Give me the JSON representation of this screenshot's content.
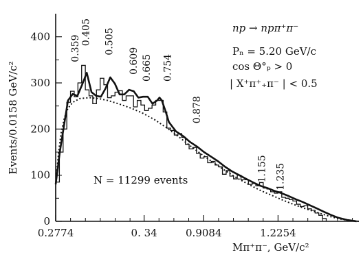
{
  "chart_data": {
    "type": "line",
    "reaction": "np → npπ⁺π⁻",
    "momentum": "Pₙ = 5.20 GeV/c",
    "cut_angle": "cos Θ°ₚ > 0",
    "cut_x": "| X⁺π⁺₊π⁻ | < 0.5",
    "events_note": "N = 11299 events",
    "xlabel": "Mπ⁺π⁻, GeV/c²",
    "ylabel": "Events/0.0158 GeV/c²",
    "xlim": [
      0.2774,
      1.57
    ],
    "ylim": [
      0,
      450
    ],
    "x_ticks": [
      {
        "value": 0.2774,
        "label": "0.2774"
      },
      {
        "value": 0.6544,
        "label": "0. 34"
      },
      {
        "value": 0.9084,
        "label": "0.9084"
      },
      {
        "value": 1.2254,
        "label": "1.2254"
      }
    ],
    "x_minor_ticks": [
      0.3408,
      0.4042,
      0.4676,
      0.531,
      0.5944,
      0.7178,
      0.7812,
      0.8446,
      0.9718,
      1.0352,
      1.0986,
      1.162,
      1.2888,
      1.3522,
      1.4156,
      1.479,
      1.5424
    ],
    "y_ticks": [
      0,
      100,
      200,
      300,
      400
    ],
    "y_minor_ticks": [
      50,
      150,
      250,
      350
    ],
    "peak_labels": [
      {
        "label": "0.359",
        "x": 0.359,
        "y": 345
      },
      {
        "label": "0.405",
        "x": 0.405,
        "y": 380
      },
      {
        "label": "0.505",
        "x": 0.505,
        "y": 360
      },
      {
        "label": "0.609",
        "x": 0.609,
        "y": 318
      },
      {
        "label": "0.665",
        "x": 0.665,
        "y": 303
      },
      {
        "label": "0.754",
        "x": 0.754,
        "y": 303
      },
      {
        "label": "0.878",
        "x": 0.878,
        "y": 212
      },
      {
        "label": "1.155",
        "x": 1.155,
        "y": 84
      },
      {
        "label": "1.235",
        "x": 1.235,
        "y": 67
      }
    ],
    "series": [
      {
        "style": "histogram",
        "x": [
          0.2774,
          0.2932,
          0.309,
          0.3248,
          0.3406,
          0.3564,
          0.3722,
          0.388,
          0.4038,
          0.4196,
          0.4354,
          0.4512,
          0.467,
          0.4828,
          0.4986,
          0.5144,
          0.5302,
          0.546,
          0.5618,
          0.5776,
          0.5934,
          0.6092,
          0.625,
          0.6408,
          0.6566,
          0.6724,
          0.6882,
          0.704,
          0.7198,
          0.7356,
          0.7514,
          0.7672,
          0.783,
          0.7988,
          0.8146,
          0.8304,
          0.8462,
          0.862,
          0.8778,
          0.8936,
          0.9094,
          0.9252,
          0.941,
          0.9568,
          0.9726,
          0.9884,
          1.0042,
          1.02,
          1.0358,
          1.0516,
          1.0674,
          1.0832,
          1.099,
          1.1148,
          1.1306,
          1.1464,
          1.1622,
          1.178,
          1.1938,
          1.2096,
          1.2254,
          1.2412,
          1.257,
          1.2728,
          1.2886,
          1.3044,
          1.3202,
          1.336,
          1.3518,
          1.3676,
          1.3834,
          1.3992,
          1.415
        ],
        "values": [
          85,
          150,
          200,
          258,
          282,
          270,
          300,
          338,
          285,
          272,
          255,
          285,
          310,
          296,
          268,
          272,
          280,
          283,
          262,
          272,
          272,
          248,
          262,
          252,
          240,
          245,
          252,
          262,
          262,
          237,
          202,
          197,
          187,
          190,
          182,
          167,
          157,
          160,
          147,
          137,
          140,
          127,
          130,
          122,
          118,
          102,
          110,
          98,
          92,
          100,
          90,
          90,
          80,
          82,
          77,
          84,
          72,
          70,
          64,
          61,
          64,
          52,
          50,
          47,
          44,
          37,
          32,
          34,
          27,
          24,
          18,
          13,
          6
        ]
      },
      {
        "style": "fit-solid",
        "x": [
          0.2774,
          0.295,
          0.312,
          0.33,
          0.35,
          0.37,
          0.39,
          0.41,
          0.43,
          0.45,
          0.47,
          0.49,
          0.51,
          0.53,
          0.55,
          0.57,
          0.59,
          0.61,
          0.63,
          0.65,
          0.67,
          0.69,
          0.71,
          0.72,
          0.73,
          0.745,
          0.76,
          0.775,
          0.79,
          0.82,
          0.85,
          0.88,
          0.91,
          0.94,
          0.97,
          1.0,
          1.03,
          1.06,
          1.09,
          1.12,
          1.15,
          1.18,
          1.21,
          1.24,
          1.27,
          1.3,
          1.33,
          1.36,
          1.39,
          1.42,
          1.45,
          1.48,
          1.52,
          1.56
        ],
        "values": [
          80,
          150,
          205,
          262,
          276,
          272,
          296,
          322,
          280,
          272,
          270,
          288,
          312,
          298,
          275,
          275,
          285,
          282,
          268,
          270,
          270,
          255,
          262,
          268,
          262,
          240,
          215,
          205,
          195,
          185,
          172,
          162,
          150,
          140,
          130,
          118,
          108,
          100,
          92,
          84,
          77,
          72,
          66,
          61,
          55,
          48,
          42,
          35,
          28,
          21,
          14,
          8,
          3,
          0
        ]
      },
      {
        "style": "background-dotted",
        "x": [
          0.2774,
          0.29,
          0.3,
          0.315,
          0.33,
          0.35,
          0.38,
          0.42,
          0.46,
          0.5,
          0.55,
          0.6,
          0.65,
          0.7,
          0.75,
          0.8,
          0.85,
          0.9,
          0.95,
          1.0,
          1.05,
          1.1,
          1.15,
          1.2,
          1.25,
          1.3,
          1.35,
          1.4,
          1.45,
          1.5,
          1.55,
          1.57
        ],
        "values": [
          80,
          150,
          190,
          225,
          245,
          258,
          266,
          268,
          266,
          262,
          254,
          245,
          234,
          220,
          203,
          184,
          164,
          145,
          127,
          110,
          94,
          80,
          67,
          56,
          45,
          35,
          26,
          18,
          10,
          4,
          1,
          0
        ]
      }
    ]
  }
}
